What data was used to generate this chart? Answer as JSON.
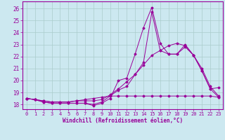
{
  "xlabel": "Windchill (Refroidissement éolien,°C)",
  "ylabel": "",
  "background_color": "#cce8f0",
  "line_color": "#990099",
  "grid_color": "#aacccc",
  "xlim": [
    -0.5,
    23.5
  ],
  "ylim": [
    17.6,
    26.6
  ],
  "xticks": [
    0,
    1,
    2,
    3,
    4,
    5,
    6,
    7,
    8,
    9,
    10,
    11,
    12,
    13,
    14,
    15,
    16,
    17,
    18,
    19,
    20,
    21,
    22,
    23
  ],
  "yticks": [
    18,
    19,
    20,
    21,
    22,
    23,
    24,
    25,
    26
  ],
  "series": [
    {
      "x": [
        0,
        1,
        2,
        3,
        4,
        5,
        6,
        7,
        8,
        9,
        10,
        11,
        12,
        13,
        14,
        15,
        16,
        17,
        18,
        19,
        20,
        21,
        22,
        23
      ],
      "y": [
        18.5,
        18.4,
        18.2,
        18.1,
        18.1,
        18.1,
        18.1,
        18.1,
        17.9,
        18.1,
        18.5,
        20.0,
        20.2,
        22.2,
        24.4,
        26.1,
        23.1,
        22.2,
        22.2,
        22.8,
        22.1,
        20.8,
        19.3,
        18.6
      ]
    },
    {
      "x": [
        0,
        1,
        2,
        3,
        4,
        5,
        6,
        7,
        8,
        9,
        10,
        11,
        12,
        13,
        14,
        15,
        16,
        17,
        18,
        19,
        20,
        21,
        22,
        23
      ],
      "y": [
        18.5,
        18.4,
        18.2,
        18.1,
        18.1,
        18.1,
        18.1,
        18.1,
        18.0,
        18.2,
        18.7,
        19.2,
        19.5,
        20.5,
        21.5,
        25.7,
        22.5,
        22.2,
        22.2,
        23.0,
        22.1,
        21.0,
        19.5,
        18.7
      ]
    },
    {
      "x": [
        0,
        1,
        2,
        3,
        4,
        5,
        6,
        7,
        8,
        9,
        10,
        11,
        12,
        13,
        14,
        15,
        16,
        17,
        18,
        19,
        20,
        21,
        22,
        23
      ],
      "y": [
        18.5,
        18.4,
        18.3,
        18.2,
        18.2,
        18.2,
        18.3,
        18.3,
        18.3,
        18.4,
        18.8,
        19.3,
        19.9,
        20.5,
        21.3,
        22.1,
        22.5,
        22.9,
        23.1,
        22.9,
        22.1,
        20.8,
        19.3,
        19.4
      ]
    },
    {
      "x": [
        0,
        1,
        2,
        3,
        4,
        5,
        6,
        7,
        8,
        9,
        10,
        11,
        12,
        13,
        14,
        15,
        16,
        17,
        18,
        19,
        20,
        21,
        22,
        23
      ],
      "y": [
        18.5,
        18.4,
        18.3,
        18.2,
        18.2,
        18.2,
        18.3,
        18.4,
        18.5,
        18.6,
        18.7,
        18.7,
        18.7,
        18.7,
        18.7,
        18.7,
        18.7,
        18.7,
        18.7,
        18.7,
        18.7,
        18.7,
        18.7,
        18.6
      ]
    }
  ]
}
